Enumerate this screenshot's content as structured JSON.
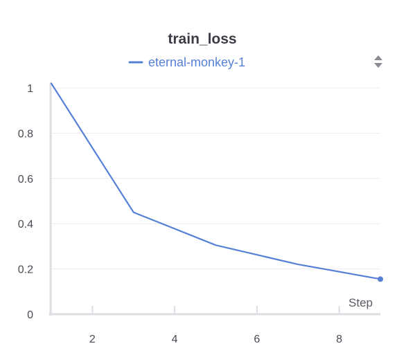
{
  "chart_data": {
    "type": "line",
    "title": "train_loss",
    "xlabel": "Step",
    "ylabel": "",
    "xlim": [
      1,
      9
    ],
    "ylim": [
      0,
      1.0
    ],
    "xticks": [
      2,
      4,
      6,
      8
    ],
    "yticks": [
      0,
      0.2,
      0.4,
      0.6,
      0.8,
      1
    ],
    "ytick_labels": [
      "0",
      "0.2",
      "0.4",
      "0.6",
      "0.8",
      "1"
    ],
    "grid": true,
    "legend_position": "top-center",
    "series": [
      {
        "name": "eternal-monkey-1",
        "color": "#5680d6",
        "x": [
          1,
          3,
          5,
          7,
          9
        ],
        "y": [
          1.02,
          0.45,
          0.305,
          0.22,
          0.155
        ]
      }
    ]
  },
  "icons": {
    "legend_scroll": "sort-arrows-icon"
  }
}
